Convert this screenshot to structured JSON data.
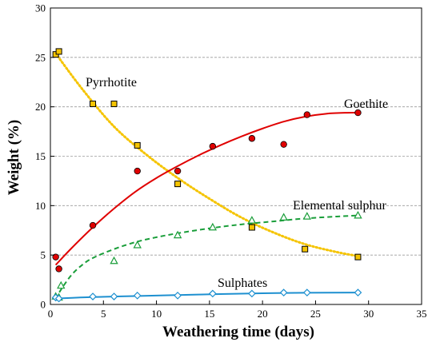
{
  "chart_data": {
    "type": "scatter",
    "xlabel": "Weathering time (days)",
    "ylabel": "Weight (%)",
    "xlim": [
      0,
      35
    ],
    "ylim": [
      0,
      30
    ],
    "xticks": [
      "0",
      "5",
      "10",
      "15",
      "20",
      "25",
      "30",
      "35"
    ],
    "yticks": [
      "0",
      "5",
      "10",
      "15",
      "20",
      "25",
      "30"
    ],
    "grid": "horizontal dashed",
    "series": [
      {
        "name": "Pyrrhotite",
        "color": "#f5c400",
        "marker": "square",
        "line_style": "dotted",
        "points": [
          [
            0.5,
            25.3
          ],
          [
            0.8,
            25.6
          ],
          [
            4,
            20.3
          ],
          [
            6,
            20.3
          ],
          [
            8.2,
            16.1
          ],
          [
            12,
            12.2
          ],
          [
            19,
            7.8
          ],
          [
            24,
            5.6
          ],
          [
            29,
            4.8
          ]
        ],
        "fit": [
          [
            0.5,
            25.4
          ],
          [
            3,
            21.8
          ],
          [
            6,
            18.0
          ],
          [
            9,
            15.2
          ],
          [
            12,
            12.8
          ],
          [
            15,
            10.7
          ],
          [
            18,
            8.8
          ],
          [
            21,
            7.3
          ],
          [
            24,
            6.1
          ],
          [
            27,
            5.3
          ],
          [
            29,
            4.9
          ]
        ]
      },
      {
        "name": "Goethite",
        "color": "#e00000",
        "marker": "circle",
        "line_style": "solid",
        "points": [
          [
            0.5,
            4.8
          ],
          [
            0.8,
            3.6
          ],
          [
            4,
            8.0
          ],
          [
            8.2,
            13.5
          ],
          [
            12,
            13.5
          ],
          [
            15.3,
            16.0
          ],
          [
            19,
            16.8
          ],
          [
            22,
            16.2
          ],
          [
            24.2,
            19.2
          ],
          [
            29,
            19.4
          ]
        ],
        "fit": [
          [
            0.5,
            4.0
          ],
          [
            2,
            5.7
          ],
          [
            4,
            7.8
          ],
          [
            6,
            9.7
          ],
          [
            8,
            11.4
          ],
          [
            10,
            12.8
          ],
          [
            12,
            14.0
          ],
          [
            14,
            15.1
          ],
          [
            16,
            16.1
          ],
          [
            18,
            17.0
          ],
          [
            20,
            17.8
          ],
          [
            22,
            18.5
          ],
          [
            24,
            19.0
          ],
          [
            26,
            19.3
          ],
          [
            28,
            19.4
          ],
          [
            29,
            19.4
          ]
        ]
      },
      {
        "name": "Elemental sulphur",
        "color": "#1a9e3a",
        "marker": "triangle",
        "line_style": "dashed",
        "points": [
          [
            0.5,
            0.8
          ],
          [
            0.8,
            0.7
          ],
          [
            1,
            1.9
          ],
          [
            6,
            4.4
          ],
          [
            8.2,
            6.0
          ],
          [
            12,
            7.0
          ],
          [
            15.3,
            7.8
          ],
          [
            19,
            8.5
          ],
          [
            22,
            8.8
          ],
          [
            24.2,
            8.9
          ],
          [
            29,
            9.0
          ]
        ],
        "fit": [
          [
            0.5,
            0.5
          ],
          [
            1,
            1.5
          ],
          [
            2,
            3.0
          ],
          [
            3,
            4.0
          ],
          [
            4,
            4.7
          ],
          [
            6,
            5.6
          ],
          [
            8,
            6.3
          ],
          [
            10,
            6.8
          ],
          [
            12,
            7.2
          ],
          [
            15,
            7.7
          ],
          [
            18,
            8.1
          ],
          [
            21,
            8.4
          ],
          [
            24,
            8.7
          ],
          [
            27,
            8.9
          ],
          [
            29,
            9.0
          ]
        ]
      },
      {
        "name": "Sulphates",
        "color": "#1e90d0",
        "marker": "diamond",
        "line_style": "solid",
        "points": [
          [
            0.5,
            0.7
          ],
          [
            0.8,
            0.6
          ],
          [
            4,
            0.8
          ],
          [
            6,
            0.8
          ],
          [
            8.2,
            0.9
          ],
          [
            12,
            0.9
          ],
          [
            15.3,
            1.1
          ],
          [
            19,
            1.1
          ],
          [
            22,
            1.2
          ],
          [
            24.2,
            1.2
          ],
          [
            29,
            1.2
          ]
        ],
        "fit": [
          [
            0.5,
            0.6
          ],
          [
            4,
            0.75
          ],
          [
            8,
            0.85
          ],
          [
            12,
            0.95
          ],
          [
            16,
            1.05
          ],
          [
            20,
            1.13
          ],
          [
            24,
            1.18
          ],
          [
            29,
            1.2
          ]
        ]
      }
    ]
  }
}
